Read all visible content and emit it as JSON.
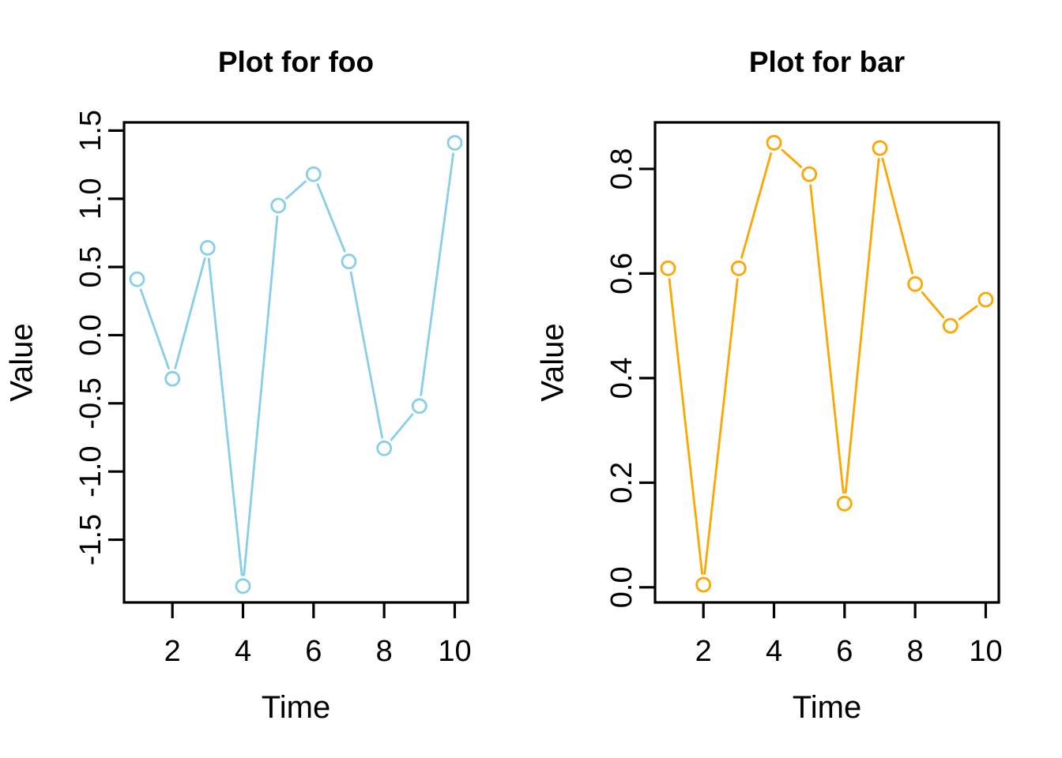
{
  "page": {
    "background": "#ffffff",
    "text_color": "#000000"
  },
  "chart_data": [
    {
      "type": "line",
      "series_name": "foo",
      "title": "Plot for foo",
      "xlabel": "Time",
      "ylabel": "Value",
      "color": "#87CEEB",
      "marker": "open-circle",
      "grid": false,
      "legend": null,
      "x": [
        1,
        2,
        3,
        4,
        5,
        6,
        7,
        8,
        9,
        10
      ],
      "y": [
        0.41,
        -0.32,
        0.64,
        -1.84,
        0.95,
        1.18,
        0.54,
        -0.83,
        -0.52,
        1.41
      ],
      "xticks": [
        2,
        4,
        6,
        8,
        10
      ],
      "xtick_labels": [
        "2",
        "4",
        "6",
        "8",
        "10"
      ],
      "yticks": [
        -1.5,
        -1.0,
        -0.5,
        0.0,
        0.5,
        1.0,
        1.5
      ],
      "ytick_labels": [
        "-1.5",
        "-1.0",
        "-0.5",
        "0.0",
        "0.5",
        "1.0",
        "1.5"
      ],
      "xlim": [
        0.63,
        10.37
      ],
      "ylim": [
        -1.96,
        1.56
      ]
    },
    {
      "type": "line",
      "series_name": "bar",
      "title": "Plot for bar",
      "xlabel": "Time",
      "ylabel": "Value",
      "color": "#FFA500",
      "marker": "open-circle",
      "grid": false,
      "legend": null,
      "x": [
        1,
        2,
        3,
        4,
        5,
        6,
        7,
        8,
        9,
        10
      ],
      "y": [
        0.61,
        0.005,
        0.61,
        0.85,
        0.79,
        0.16,
        0.84,
        0.58,
        0.5,
        0.55
      ],
      "xticks": [
        2,
        4,
        6,
        8,
        10
      ],
      "xtick_labels": [
        "2",
        "4",
        "6",
        "8",
        "10"
      ],
      "yticks": [
        0.0,
        0.2,
        0.4,
        0.6,
        0.8
      ],
      "ytick_labels": [
        "0.0",
        "0.2",
        "0.4",
        "0.6",
        "0.8"
      ],
      "xlim": [
        0.63,
        10.37
      ],
      "ylim": [
        -0.029,
        0.889
      ]
    }
  ]
}
